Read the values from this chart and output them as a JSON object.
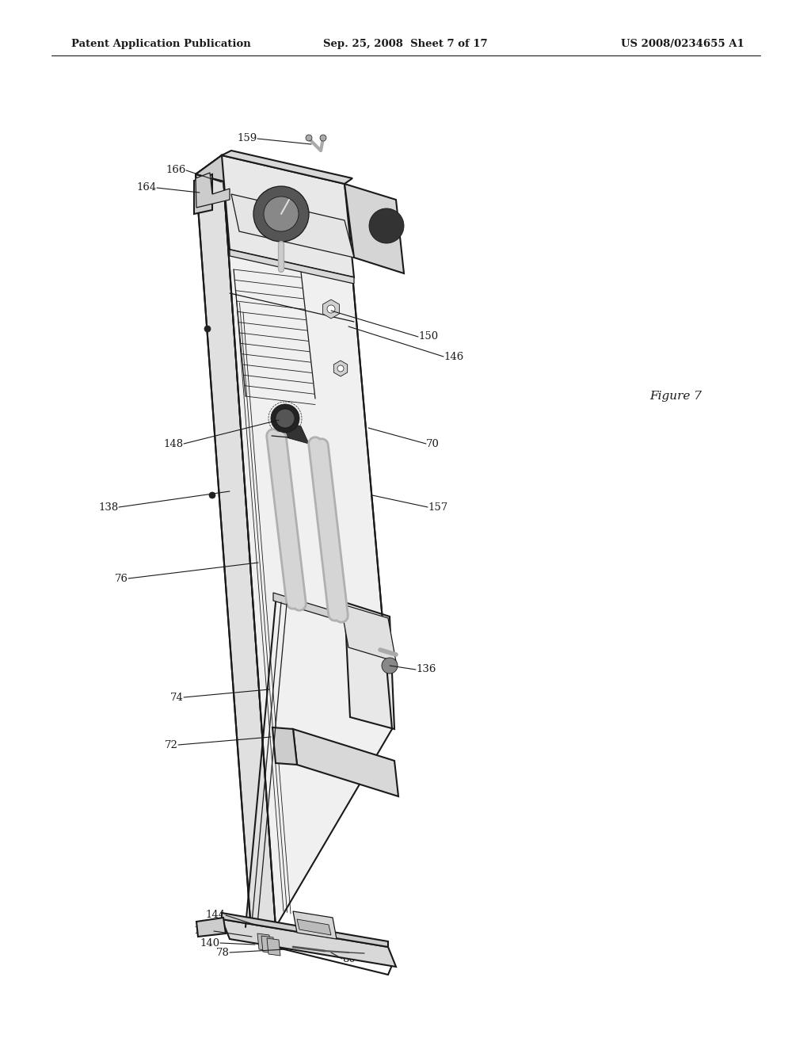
{
  "bg_color": "#ffffff",
  "header_left": "Patent Application Publication",
  "header_mid": "Sep. 25, 2008  Sheet 7 of 17",
  "header_right": "US 2008/0234655 A1",
  "figure_label": "Figure 7",
  "line_color": "#1a1a1a",
  "label_fontsize": 9.5,
  "header_fontsize": 9.5,
  "fig_label_fontsize": 11
}
